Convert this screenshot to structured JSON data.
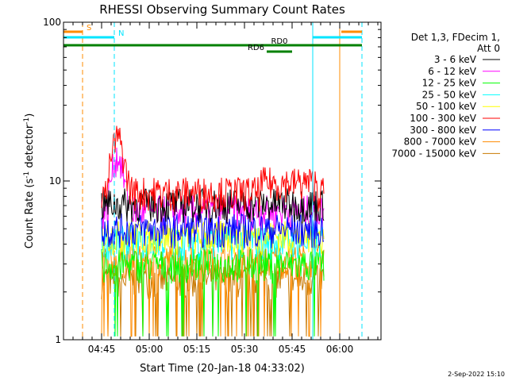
{
  "chart_data": {
    "type": "line",
    "title": "RHESSI Observing Summary Count Rates",
    "xlabel": "Start Time (20-Jan-18 04:33:02)",
    "ylabel_main": "Count Rate (s",
    "ylabel_exp1": "-1",
    "ylabel_mid": " detector",
    "ylabel_exp2": "-1",
    "ylabel_end": ")",
    "yscale": "log",
    "ylim": [
      1,
      100
    ],
    "xlim_minutes": [
      0,
      100
    ],
    "x_ticks": [
      {
        "label": "04:45",
        "min": 12
      },
      {
        "label": "05:00",
        "min": 27
      },
      {
        "label": "05:15",
        "min": 42
      },
      {
        "label": "05:30",
        "min": 57
      },
      {
        "label": "05:45",
        "min": 72
      },
      {
        "label": "06:00",
        "min": 87
      }
    ],
    "y_ticks": [
      {
        "label": "1",
        "value": 1
      },
      {
        "label": "10",
        "value": 10
      },
      {
        "label": "100",
        "value": 100
      }
    ],
    "legend_header": [
      "Det 1,3, FDecim 1,",
      "Att 0"
    ],
    "legend_position": "right",
    "series": [
      {
        "name": "3 - 6 keV",
        "color": "#000000"
      },
      {
        "name": "6 - 12 keV",
        "color": "#ff00ff"
      },
      {
        "name": "12 - 25 keV",
        "color": "#00ff00"
      },
      {
        "name": "25 - 50 keV",
        "color": "#00ffff"
      },
      {
        "name": "50 - 100 keV",
        "color": "#ffff00"
      },
      {
        "name": "100 - 300 keV",
        "color": "#ff0000"
      },
      {
        "name": "300 - 800 keV",
        "color": "#0000ff"
      },
      {
        "name": "800 - 7000 keV",
        "color": "#ff8c00"
      },
      {
        "name": "7000 - 15000 keV",
        "color": "#c87800"
      }
    ],
    "annotations": [
      {
        "label": "S",
        "color": "#ff8c00",
        "start_min": 0,
        "end_min": 6
      },
      {
        "label": "N",
        "color": "#00e5ff",
        "start_min": 0,
        "end_min": 16
      },
      {
        "label": "RD0",
        "color": "#008000",
        "start_min": 0,
        "end_min": 94
      },
      {
        "label": "RD6",
        "color": "#008000",
        "start_min": 64,
        "end_min": 72
      }
    ],
    "vertical_markers": [
      {
        "min": 6,
        "color": "#ff8c00",
        "style": "dashed"
      },
      {
        "min": 16,
        "color": "#00e5ff",
        "style": "dashed"
      },
      {
        "min": 78.5,
        "color": "#00e5ff",
        "style": "solid"
      },
      {
        "min": 87,
        "color": "#ff8c00",
        "style": "solid"
      },
      {
        "min": 94,
        "color": "#00e5ff",
        "style": "dashed"
      }
    ],
    "observing_window_min": [
      12,
      82
    ],
    "footer": "2-Sep-2022 15:10"
  }
}
